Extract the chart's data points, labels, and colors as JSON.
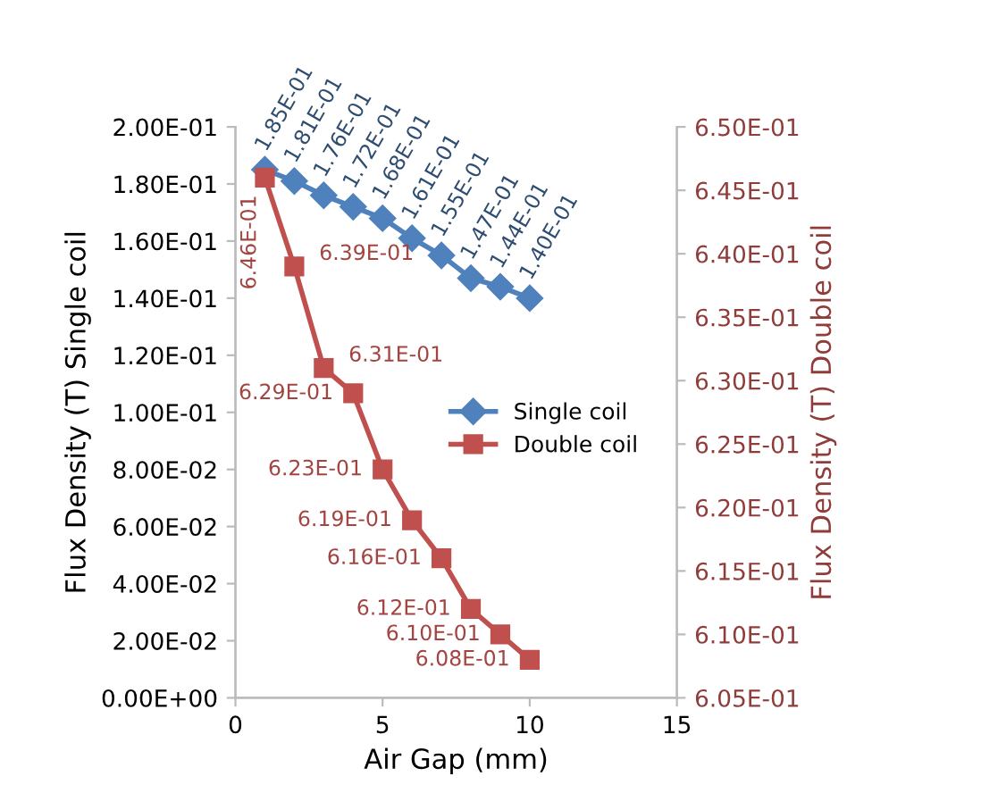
{
  "chart_data": {
    "type": "line",
    "xlabel": "Air Gap (mm)",
    "ylabel": "Flux Density (T) Single coil",
    "y2label": "Flux Density (T) Double coil",
    "x": [
      1,
      2,
      3,
      4,
      5,
      6,
      7,
      8,
      9,
      10
    ],
    "series": [
      {
        "name": "Single coil",
        "color": "#4f81bd",
        "marker": "diamond",
        "values": [
          0.185,
          0.181,
          0.176,
          0.172,
          0.168,
          0.161,
          0.155,
          0.147,
          0.144,
          0.14
        ],
        "value_labels": [
          "1.85E-01",
          "1.81E-01",
          "1.76E-01",
          "1.72E-01",
          "1.68E-01",
          "1.61E-01",
          "1.55E-01",
          "1.47E-01",
          "1.44E-01",
          "1.40E-01"
        ]
      },
      {
        "name": "Double coil",
        "color": "#c0504d",
        "marker": "square",
        "axis": "y2",
        "values": [
          0.646,
          0.639,
          0.631,
          0.629,
          0.623,
          0.619,
          0.616,
          0.612,
          0.61,
          0.608
        ],
        "value_labels": [
          "6.46E-01",
          "6.39E-01",
          "6.31E-01",
          "6.29E-01",
          "6.23E-01",
          "6.19E-01",
          "6.16E-01",
          "6.12E-01",
          "6.10E-01",
          "6.08E-01"
        ]
      }
    ],
    "xlim": [
      0,
      15
    ],
    "xticks": [
      0,
      5,
      10,
      15
    ],
    "ylim": [
      0,
      0.2
    ],
    "yticks": [
      {
        "value": 0,
        "label": "0.00E+00"
      },
      {
        "value": 0.02,
        "label": "2.00E-02"
      },
      {
        "value": 0.04,
        "label": "4.00E-02"
      },
      {
        "value": 0.06,
        "label": "6.00E-02"
      },
      {
        "value": 0.08,
        "label": "8.00E-02"
      },
      {
        "value": 0.1,
        "label": "1.00E-01"
      },
      {
        "value": 0.12,
        "label": "1.20E-01"
      },
      {
        "value": 0.14,
        "label": "1.40E-01"
      },
      {
        "value": 0.16,
        "label": "1.60E-01"
      },
      {
        "value": 0.18,
        "label": "1.80E-01"
      },
      {
        "value": 0.2,
        "label": "2.00E-01"
      }
    ],
    "y2lim": [
      0.605,
      0.65
    ],
    "y2ticks": [
      {
        "value": 0.605,
        "label": "6.05E-01"
      },
      {
        "value": 0.61,
        "label": "6.10E-01"
      },
      {
        "value": 0.615,
        "label": "6.15E-01"
      },
      {
        "value": 0.62,
        "label": "6.20E-01"
      },
      {
        "value": 0.625,
        "label": "6.25E-01"
      },
      {
        "value": 0.63,
        "label": "6.30E-01"
      },
      {
        "value": 0.635,
        "label": "6.35E-01"
      },
      {
        "value": 0.64,
        "label": "6.40E-01"
      },
      {
        "value": 0.645,
        "label": "6.45E-01"
      },
      {
        "value": 0.65,
        "label": "6.50E-01"
      }
    ],
    "grid": false,
    "legend": "center",
    "line_style": "solid"
  }
}
